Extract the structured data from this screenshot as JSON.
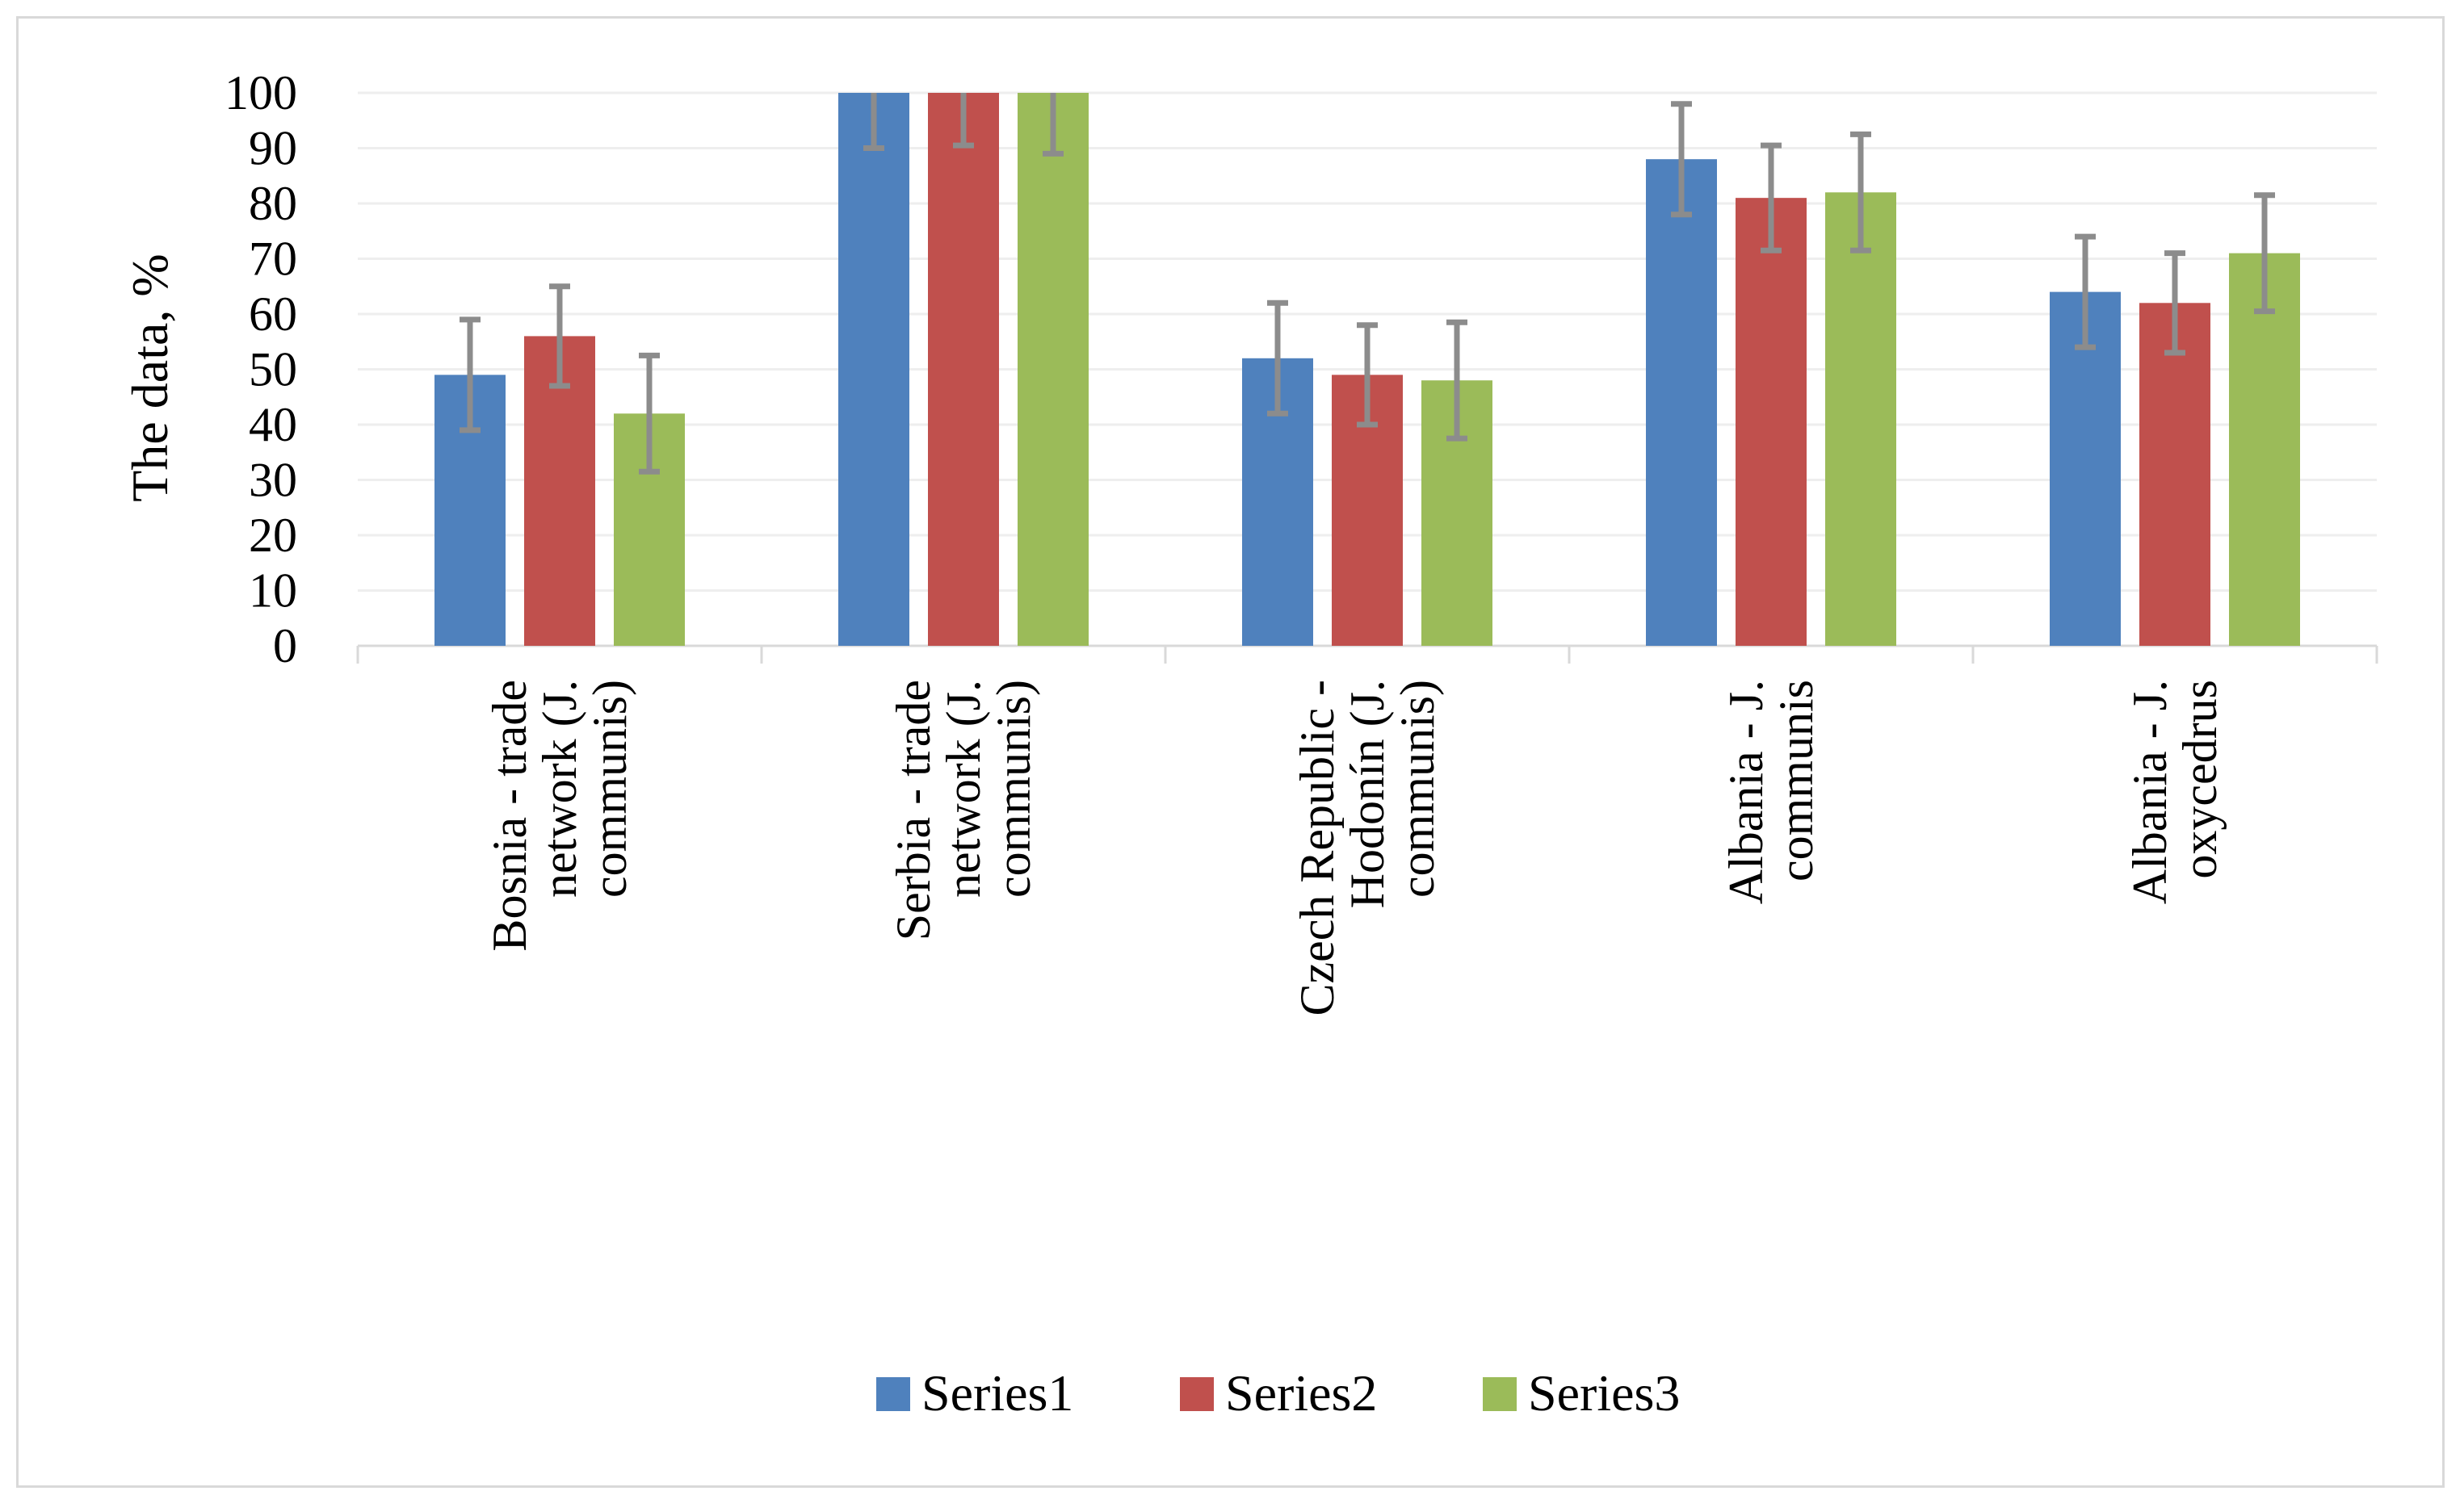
{
  "chart_data": {
    "type": "bar",
    "title": "",
    "xlabel": "",
    "ylabel": "The data, %",
    "ylim": [
      0,
      100
    ],
    "yticks": [
      0,
      10,
      20,
      30,
      40,
      50,
      60,
      70,
      80,
      90,
      100
    ],
    "grid": true,
    "legend_position": "bottom",
    "categories": [
      "Bosnia - trade network (J. communis)",
      "Serbia - trade network (J. communis)",
      "Czech Republic - Hodonín (J. communis)",
      "Albania - J. communis",
      "Albania - J. oxycedrus"
    ],
    "category_label_lines": [
      [
        "Bosnia - trade",
        "network (J.",
        "communis)"
      ],
      [
        "Serbia - trade",
        "network (J.",
        "communis)"
      ],
      [
        "Czech Republic -",
        "Hodonín (J.",
        "communis)"
      ],
      [
        "Albania - J.",
        "communis"
      ],
      [
        "Albania - J.",
        "oxycedrus"
      ]
    ],
    "series": [
      {
        "name": "Series1",
        "color": "#4f81bd",
        "values": [
          49,
          100,
          52,
          88,
          64
        ],
        "errors": [
          10,
          10,
          10,
          10,
          10
        ]
      },
      {
        "name": "Series2",
        "color": "#c0504d",
        "values": [
          56,
          100,
          49,
          81,
          62
        ],
        "errors": [
          9,
          9.5,
          9,
          9.5,
          9
        ]
      },
      {
        "name": "Series3",
        "color": "#9bbb59",
        "values": [
          42,
          100,
          48,
          82,
          71
        ],
        "errors": [
          10.5,
          11,
          10.5,
          10.5,
          10.5
        ]
      }
    ],
    "error_bar_color": "#8c8c8c"
  }
}
